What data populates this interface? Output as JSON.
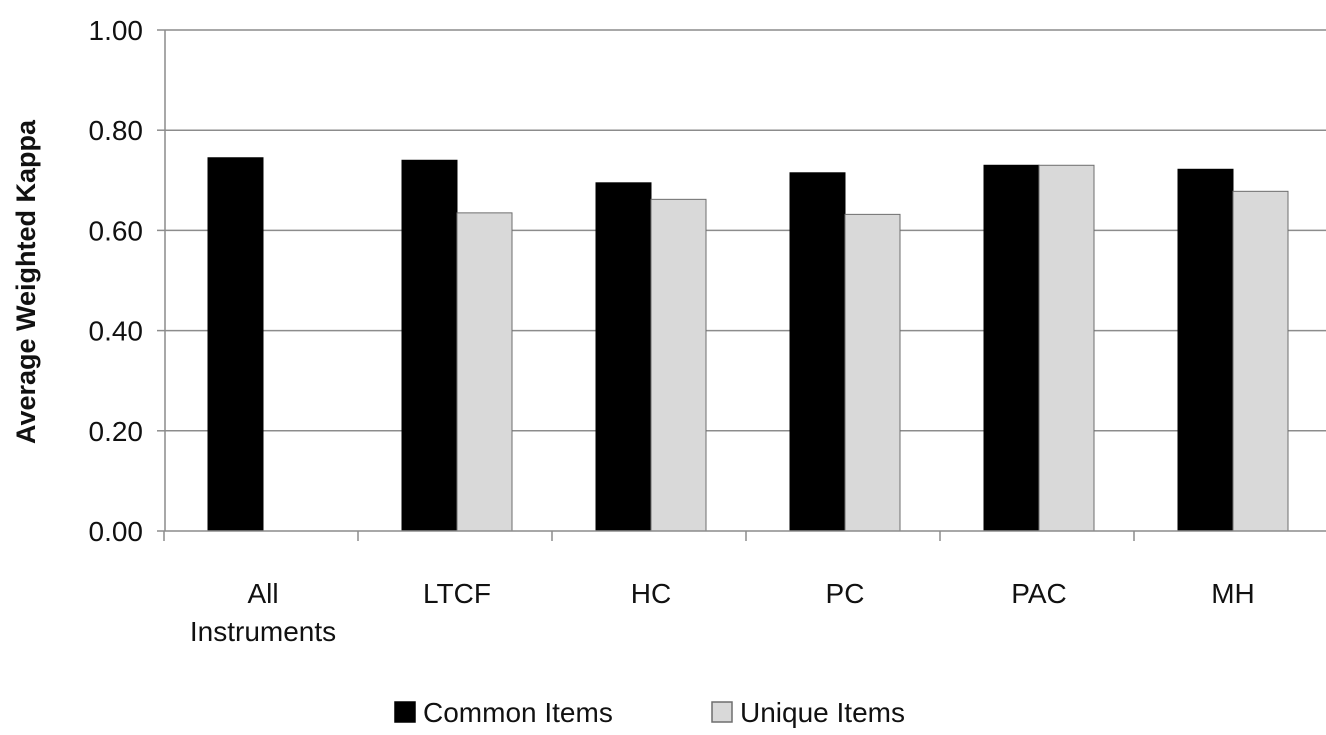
{
  "chart_data": {
    "type": "bar",
    "title": "",
    "xlabel": "",
    "ylabel": "Average Weighted Kappa",
    "ylim": [
      0,
      1
    ],
    "yticks": [
      "0.00",
      "0.20",
      "0.40",
      "0.60",
      "0.80",
      "1.00"
    ],
    "ytick_values": [
      0,
      0.2,
      0.4,
      0.6,
      0.8,
      1.0
    ],
    "grid": true,
    "legend_position": "bottom",
    "categories": [
      [
        "All",
        "Instruments"
      ],
      [
        "LTCF"
      ],
      [
        "HC"
      ],
      [
        "PC"
      ],
      [
        "PAC"
      ],
      [
        "MH"
      ]
    ],
    "series": [
      {
        "name": "Common Items",
        "color": "#000000",
        "values": [
          0.745,
          0.74,
          0.695,
          0.715,
          0.73,
          0.722
        ]
      },
      {
        "name": "Unique Items",
        "color": "#d9d9d9",
        "values": [
          null,
          0.635,
          0.662,
          0.632,
          0.73,
          0.678
        ]
      }
    ]
  }
}
